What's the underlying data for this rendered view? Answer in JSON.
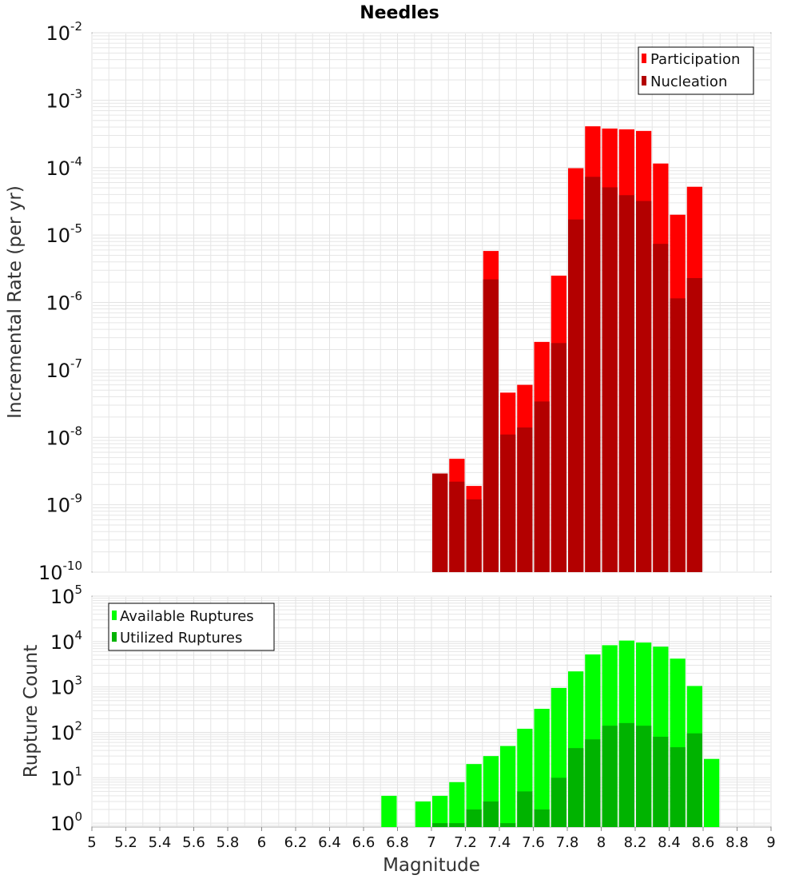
{
  "chart_data": [
    {
      "type": "bar",
      "title": "Needles",
      "ylabel": "Incremental Rate (per yr)",
      "xlabel": "",
      "y_scale": "log",
      "ylim": [
        1e-10,
        0.01
      ],
      "xlim": [
        5,
        9
      ],
      "y_ticks": [
        {
          "base": "10",
          "exp": "-10"
        },
        {
          "base": "10",
          "exp": "-9"
        },
        {
          "base": "10",
          "exp": "-8"
        },
        {
          "base": "10",
          "exp": "-7"
        },
        {
          "base": "10",
          "exp": "-6"
        },
        {
          "base": "10",
          "exp": "-5"
        },
        {
          "base": "10",
          "exp": "-4"
        },
        {
          "base": "10",
          "exp": "-3"
        },
        {
          "base": "10",
          "exp": "-2"
        }
      ],
      "x": [
        7.05,
        7.15,
        7.25,
        7.35,
        7.45,
        7.55,
        7.65,
        7.75,
        7.85,
        7.95,
        8.05,
        8.15,
        8.25,
        8.35,
        8.45,
        8.55
      ],
      "series": [
        {
          "name": "Participation",
          "color": "#ff0000",
          "values": [
            2.9e-09,
            4.8e-09,
            1.9e-09,
            5.8e-06,
            4.6e-08,
            6e-08,
            2.6e-07,
            2.5e-06,
            9.8e-05,
            0.00041,
            0.00038,
            0.00037,
            0.00035,
            0.000115,
            2e-05,
            5.2e-05
          ]
        },
        {
          "name": "Nucleation",
          "color": "#b30000",
          "values": [
            2.9e-09,
            2.2e-09,
            1.2e-09,
            2.2e-06,
            1.1e-08,
            1.4e-08,
            3.4e-08,
            2.5e-07,
            1.7e-05,
            7.3e-05,
            5.1e-05,
            3.9e-05,
            3.2e-05,
            7.4e-06,
            1.15e-06,
            2.3e-06
          ]
        }
      ],
      "legend": "top-right",
      "grid": true
    },
    {
      "type": "bar",
      "title": "",
      "ylabel": "Rupture Count",
      "xlabel": "Magnitude",
      "y_scale": "log",
      "ylim": [
        0.82,
        100000.0
      ],
      "xlim": [
        5,
        9
      ],
      "x_ticks": [
        "5",
        "5.2",
        "5.4",
        "5.6",
        "5.8",
        "6",
        "6.2",
        "6.4",
        "6.6",
        "6.8",
        "7",
        "7.2",
        "7.4",
        "7.6",
        "7.8",
        "8",
        "8.2",
        "8.4",
        "8.6",
        "8.8",
        "9"
      ],
      "y_ticks": [
        {
          "base": "10",
          "exp": "0"
        },
        {
          "base": "10",
          "exp": "1"
        },
        {
          "base": "10",
          "exp": "2"
        },
        {
          "base": "10",
          "exp": "3"
        },
        {
          "base": "10",
          "exp": "4"
        },
        {
          "base": "10",
          "exp": "5"
        }
      ],
      "x": [
        6.75,
        6.95,
        7.05,
        7.15,
        7.25,
        7.35,
        7.45,
        7.55,
        7.65,
        7.75,
        7.85,
        7.95,
        8.05,
        8.15,
        8.25,
        8.35,
        8.45,
        8.55,
        8.65
      ],
      "series": [
        {
          "name": "Available Ruptures",
          "color": "#00ff00",
          "values": [
            4,
            3,
            4,
            8,
            20,
            30,
            50,
            120,
            330,
            950,
            2200,
            5200,
            8300,
            10500,
            9500,
            7700,
            4200,
            1050,
            26
          ]
        },
        {
          "name": "Utilized Ruptures",
          "color": "#00b300",
          "values": [
            null,
            null,
            1,
            1,
            2,
            3,
            1,
            5,
            2,
            10,
            45,
            70,
            140,
            160,
            140,
            80,
            47,
            95,
            null
          ]
        }
      ],
      "legend": "top-left",
      "grid": true
    }
  ]
}
